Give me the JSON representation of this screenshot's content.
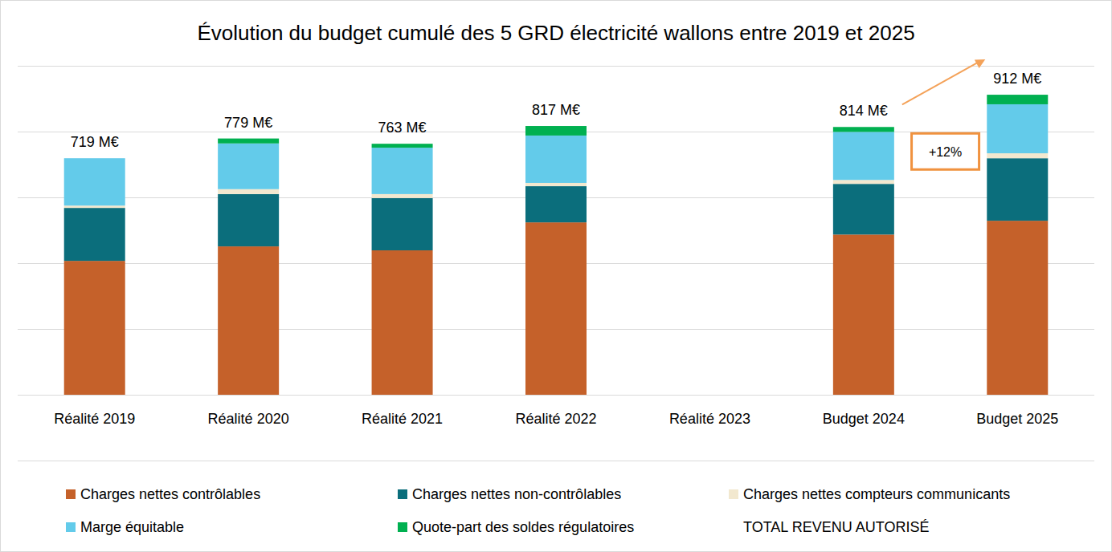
{
  "chart_data": {
    "type": "bar",
    "title": "Évolution du budget cumulé des 5 GRD électricité wallons entre 2019 et 2025",
    "categories": [
      "Réalité 2019",
      "Réalité 2020",
      "Réalité 2021",
      "Réalité 2022",
      "Réalité 2023",
      "Budget 2024",
      "Budget 2025"
    ],
    "stacked": true,
    "grid": true,
    "legend": "bottom",
    "tick_labels": "x",
    "ylim": [
      0,
      1000
    ],
    "yticks": [
      0,
      200,
      400,
      600,
      800,
      1000
    ],
    "series": [
      {
        "name": "Charges nettes contrôlables",
        "color": "#C5612A",
        "values": [
          407,
          451,
          439,
          524,
          null,
          487,
          529
        ]
      },
      {
        "name": "Charges nettes non-contrôlables",
        "color": "#0B6E7C",
        "values": [
          161,
          159,
          159,
          110,
          null,
          154,
          190
        ]
      },
      {
        "name": "Charges nettes compteurs communicants",
        "color": "#F2E8CF",
        "values": [
          7,
          15,
          12,
          10,
          null,
          12,
          15
        ]
      },
      {
        "name": "Marge équitable",
        "color": "#63CBEA",
        "values": [
          144,
          139,
          141,
          144,
          null,
          146,
          149
        ]
      },
      {
        "name": "Quote-part des soldes régulatoires",
        "color": "#00B050",
        "values": [
          0,
          15,
          12,
          29,
          null,
          15,
          29
        ]
      },
      {
        "name": "TOTAL REVENU AUTORISÉ",
        "type": "label",
        "values": [
          719,
          779,
          763,
          817,
          null,
          814,
          912
        ],
        "value_labels": [
          "719 M€",
          "779 M€",
          "763 M€",
          "817 M€",
          null,
          "814 M€",
          "912 M€"
        ]
      }
    ],
    "annotations": [
      {
        "text": "+12%"
      }
    ]
  }
}
